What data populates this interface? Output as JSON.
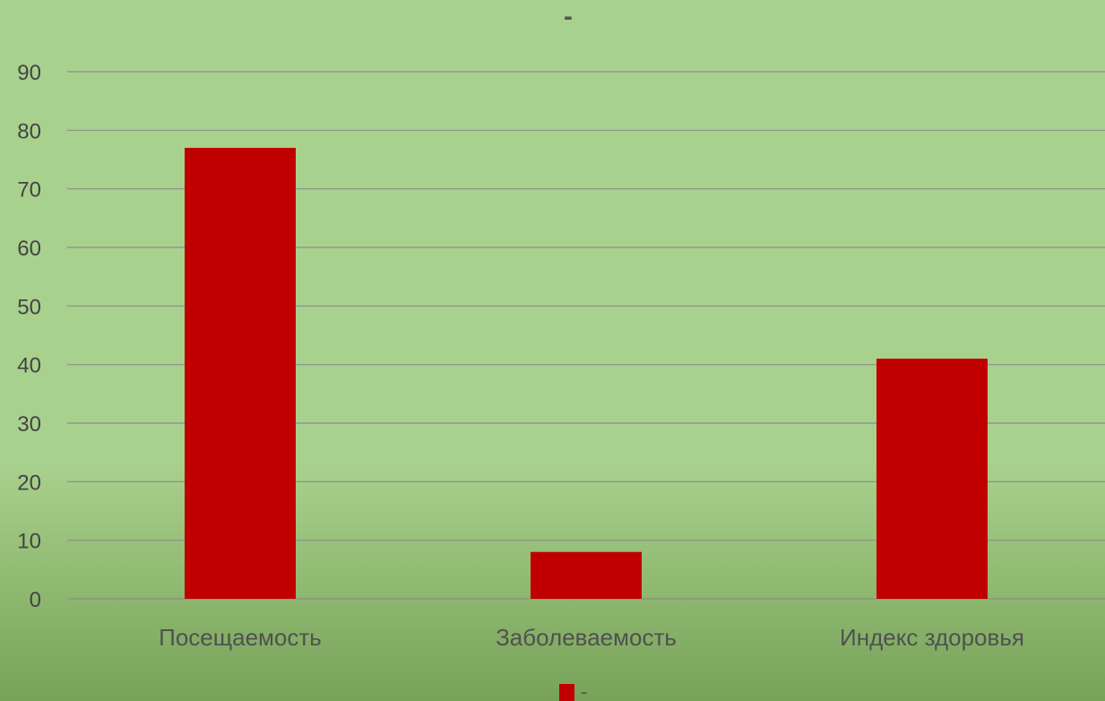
{
  "chart_data": {
    "type": "bar",
    "title": "-",
    "categories": [
      "Посещаемость",
      "Заболеваемость",
      "Индекс здоровья"
    ],
    "series": [
      {
        "name": "-",
        "values": [
          77,
          8,
          41
        ]
      }
    ],
    "ylim": [
      0,
      90
    ],
    "yticks": [
      0,
      10,
      20,
      30,
      40,
      50,
      60,
      70,
      80,
      90
    ],
    "grid": true,
    "legend_position": "bottom",
    "colors": {
      "bar": "#c00000",
      "grid": "#8c8c8c",
      "background": "#a9d18e"
    }
  }
}
